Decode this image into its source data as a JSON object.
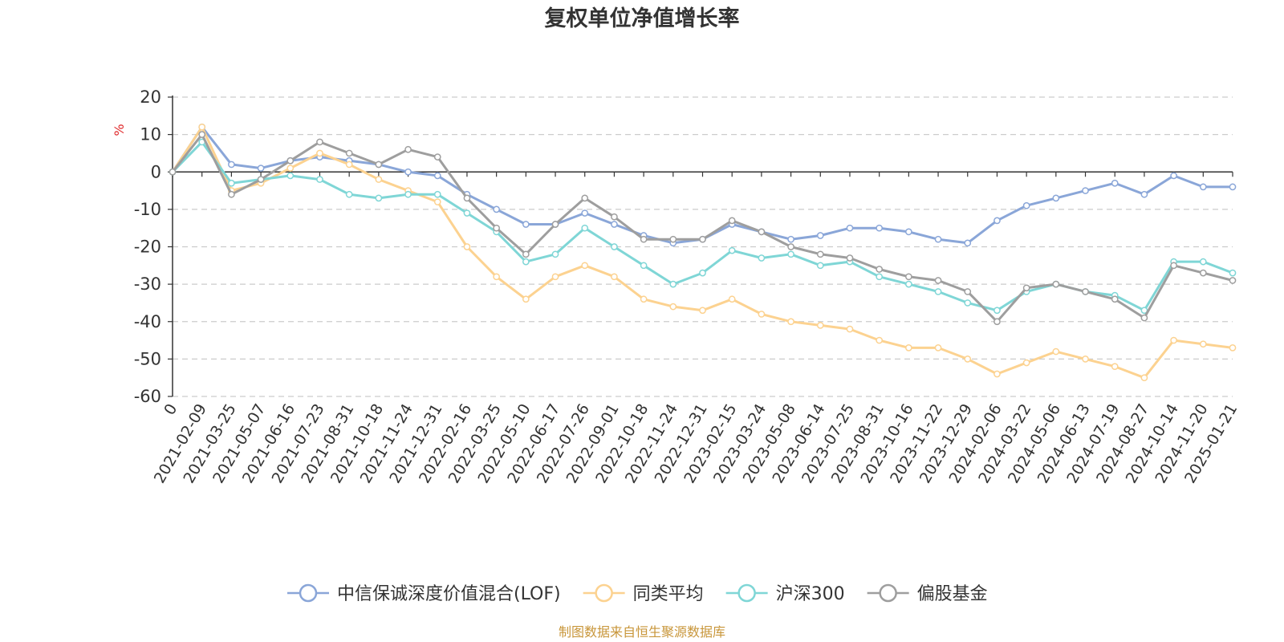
{
  "chart_data": {
    "type": "line",
    "title": "复权单位净值增长率",
    "ylabel": "%",
    "ylim": [
      -60,
      20
    ],
    "yticks": [
      20,
      10,
      0,
      -10,
      -20,
      -30,
      -40,
      -50,
      -60
    ],
    "grid": true,
    "legend_position": "bottom",
    "source_note": "制图数据来自恒生聚源数据库",
    "categories": [
      "0",
      "2021-02-09",
      "2021-03-25",
      "2021-05-07",
      "2021-06-16",
      "2021-07-23",
      "2021-08-31",
      "2021-10-18",
      "2021-11-24",
      "2021-12-31",
      "2022-02-16",
      "2022-03-25",
      "2022-05-10",
      "2022-06-17",
      "2022-07-26",
      "2022-09-01",
      "2022-10-18",
      "2022-11-24",
      "2022-12-31",
      "2023-02-15",
      "2023-03-24",
      "2023-05-08",
      "2023-06-14",
      "2023-07-25",
      "2023-08-31",
      "2023-10-16",
      "2023-11-22",
      "2023-12-29",
      "2024-02-06",
      "2024-03-22",
      "2024-05-06",
      "2024-06-13",
      "2024-07-19",
      "2024-08-27",
      "2024-10-14",
      "2024-11-20",
      "2025-01-21"
    ],
    "series": [
      {
        "name": "中信保诚深度价值混合(LOF)",
        "color": "#8aa6d8",
        "values": [
          0,
          12,
          2,
          1,
          3,
          4,
          3,
          2,
          0,
          -1,
          -6,
          -10,
          -14,
          -14,
          -11,
          -14,
          -17,
          -19,
          -18,
          -14,
          -16,
          -18,
          -17,
          -15,
          -15,
          -16,
          -18,
          -19,
          -13,
          -9,
          -7,
          -5,
          -3,
          -6,
          -1,
          -4,
          -4
        ]
      },
      {
        "name": "同类平均",
        "color": "#fcd290",
        "values": [
          0,
          12,
          -5,
          -3,
          1,
          5,
          2,
          -2,
          -5,
          -8,
          -20,
          -28,
          -34,
          -28,
          -25,
          -28,
          -34,
          -36,
          -37,
          -34,
          -38,
          -40,
          -41,
          -42,
          -45,
          -47,
          -47,
          -50,
          -54,
          -51,
          -48,
          -50,
          -52,
          -55,
          -45,
          -46,
          -47
        ]
      },
      {
        "name": "沪深300",
        "color": "#7fd6d6",
        "values": [
          0,
          8,
          -3,
          -2,
          -1,
          -2,
          -6,
          -7,
          -6,
          -6,
          -11,
          -16,
          -24,
          -22,
          -15,
          -20,
          -25,
          -30,
          -27,
          -21,
          -23,
          -22,
          -25,
          -24,
          -28,
          -30,
          -32,
          -35,
          -37,
          -32,
          -30,
          -32,
          -33,
          -37,
          -24,
          -24,
          -27
        ]
      },
      {
        "name": "偏股基金",
        "color": "#9e9e9e",
        "values": [
          0,
          10,
          -6,
          -2,
          3,
          8,
          5,
          2,
          6,
          4,
          -7,
          -15,
          -22,
          -14,
          -7,
          -12,
          -18,
          -18,
          -18,
          -13,
          -16,
          -20,
          -22,
          -23,
          -26,
          -28,
          -29,
          -32,
          -40,
          -31,
          -30,
          -32,
          -34,
          -39,
          -25,
          -27,
          -29
        ]
      }
    ]
  }
}
